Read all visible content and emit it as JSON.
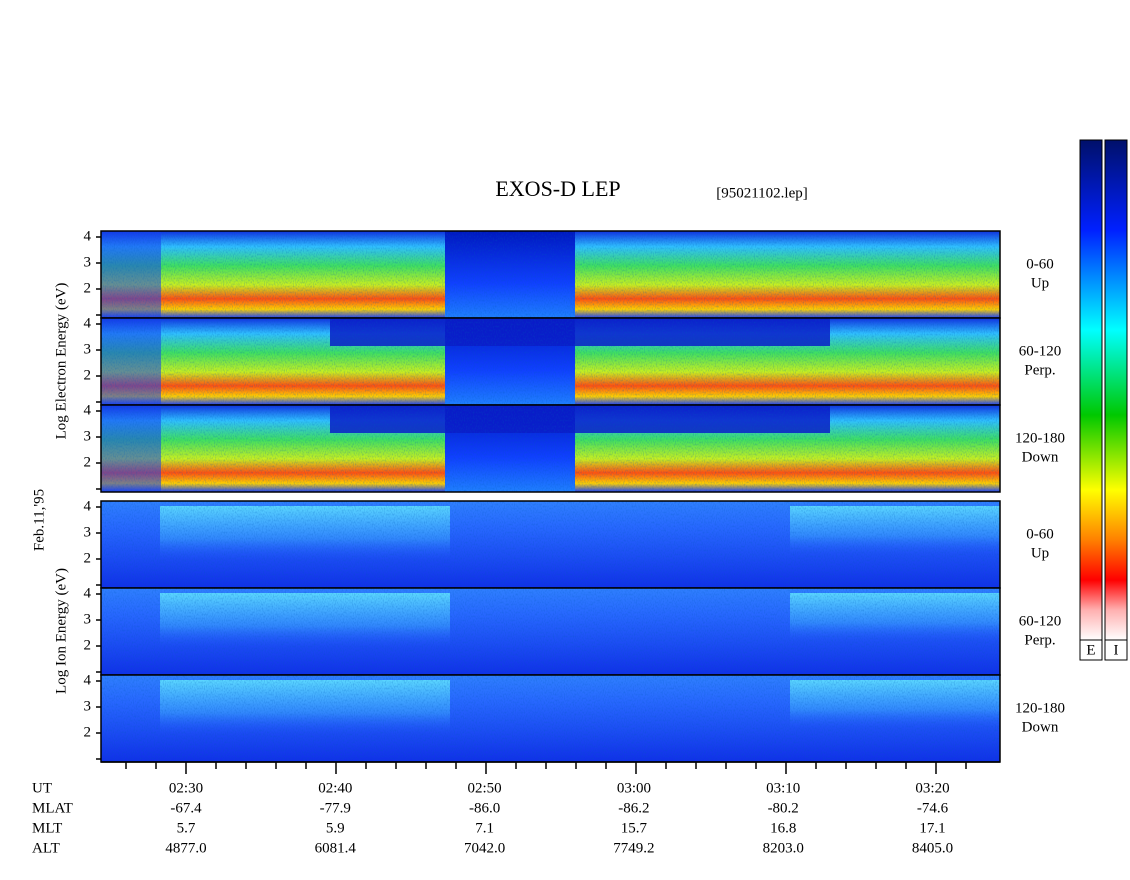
{
  "header": {
    "title": "EXOS-D LEP",
    "file": "[95021102.lep]"
  },
  "date": "Feb.11,'95",
  "groups": [
    {
      "axis_label": "Log Electron Energy (eV)",
      "panels": [
        {
          "range": "0-60",
          "direction": "Up"
        },
        {
          "range": "60-120",
          "direction": "Perp."
        },
        {
          "range": "120-180",
          "direction": "Down"
        }
      ]
    },
    {
      "axis_label": "Log Ion Energy (eV)",
      "panels": [
        {
          "range": "0-60",
          "direction": "Up"
        },
        {
          "range": "60-120",
          "direction": "Perp."
        },
        {
          "range": "120-180",
          "direction": "Down"
        }
      ]
    }
  ],
  "energy_ticks": [
    "4",
    "3",
    "2"
  ],
  "time_axis": {
    "rows": [
      {
        "label": "UT",
        "values": [
          "02:30",
          "02:40",
          "02:50",
          "03:00",
          "03:10",
          "03:20"
        ]
      },
      {
        "label": "MLAT",
        "values": [
          "-67.4",
          "-77.9",
          "-86.0",
          "-86.2",
          "-80.2",
          "-74.6"
        ]
      },
      {
        "label": "MLT",
        "values": [
          "5.7",
          "5.9",
          "7.1",
          "15.7",
          "16.8",
          "17.1"
        ]
      },
      {
        "label": "ALT",
        "values": [
          "4877.0",
          "6081.4",
          "7042.0",
          "7749.2",
          "8203.0",
          "8405.0"
        ]
      }
    ]
  },
  "colorbars": [
    "E",
    "I"
  ]
}
